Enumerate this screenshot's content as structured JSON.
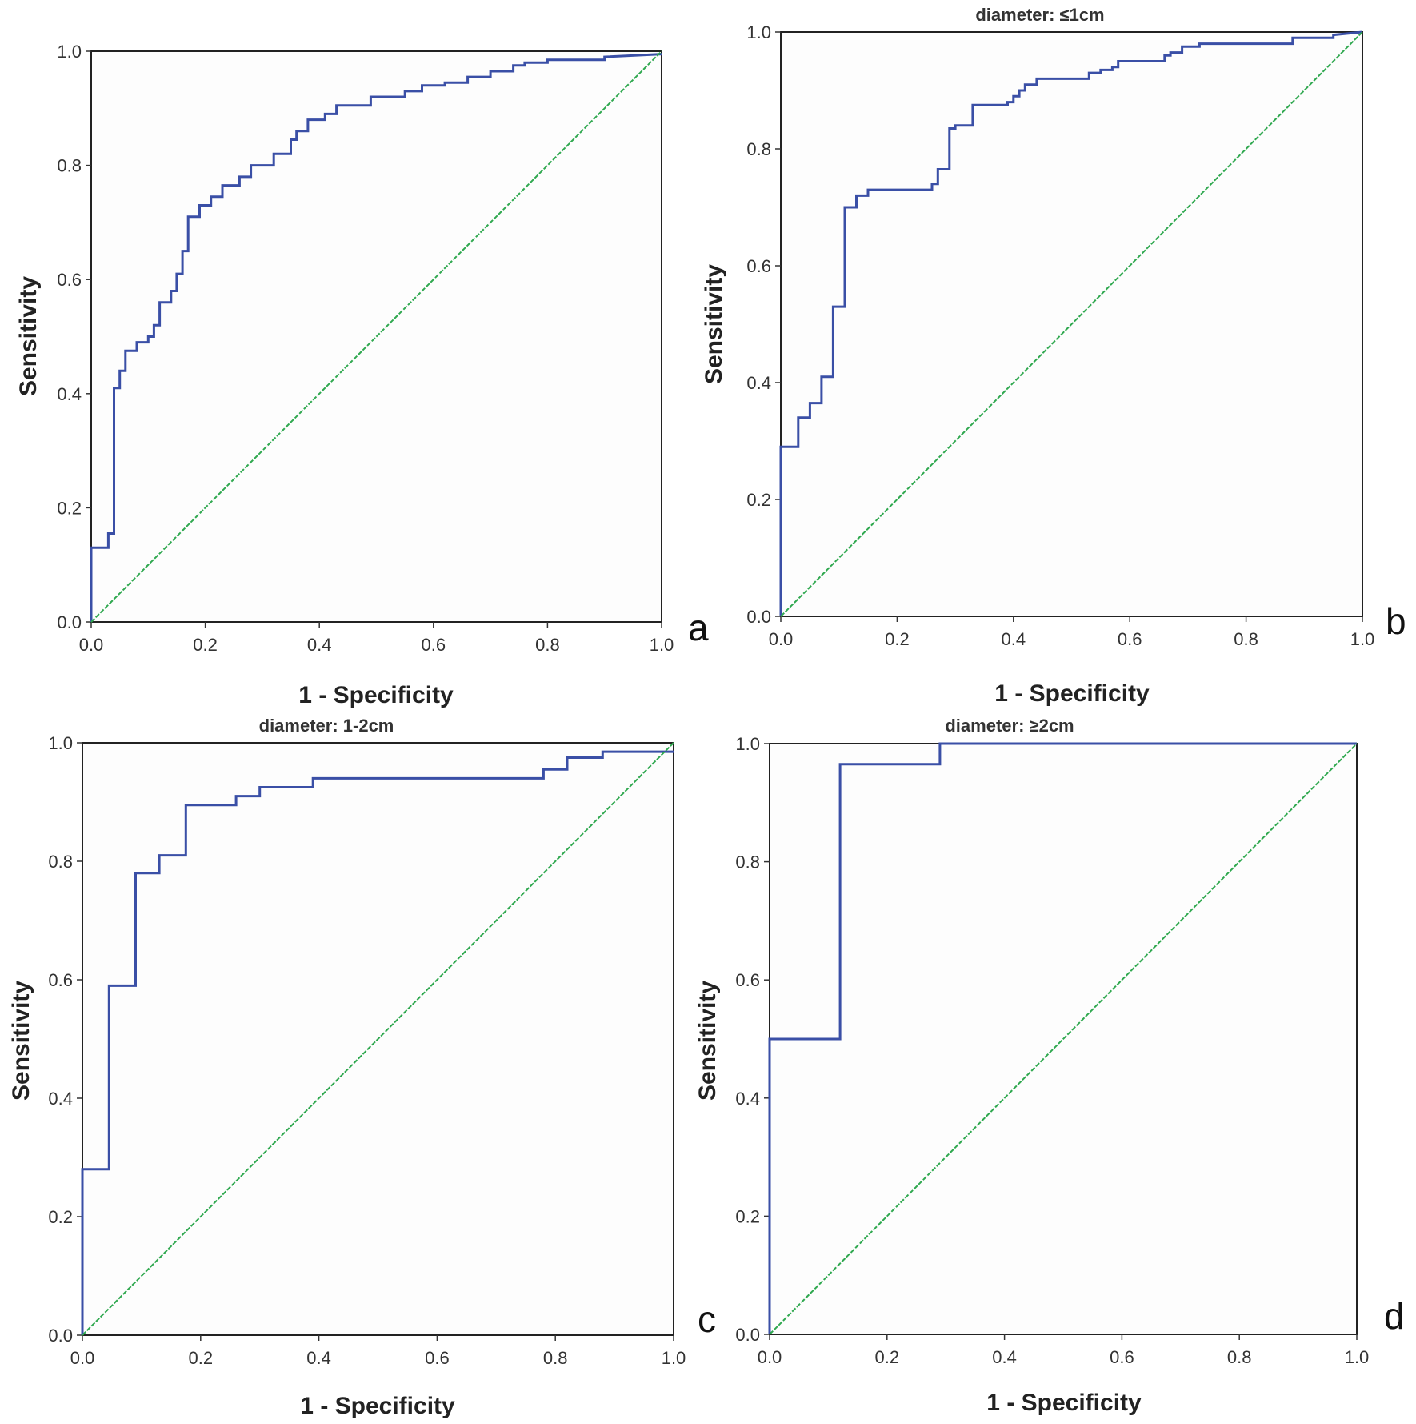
{
  "colors": {
    "roc": "#3a4fa6",
    "reference": "#2fa84f",
    "frame": "#222222"
  },
  "chart_data": [
    {
      "type": "line",
      "panel": "a",
      "title": "",
      "xlabel": "1 - Specificity",
      "ylabel": "Sensitivity",
      "xlim": [
        0,
        1
      ],
      "ylim": [
        0,
        1
      ],
      "xticks": [
        "0.0",
        "0.2",
        "0.4",
        "0.6",
        "0.8",
        "1.0"
      ],
      "yticks": [
        "0.0",
        "0.2",
        "0.4",
        "0.6",
        "0.8",
        "1.0"
      ],
      "series": [
        {
          "name": "ROC",
          "x": [
            0,
            0,
            0.03,
            0.03,
            0.04,
            0.04,
            0.05,
            0.05,
            0.06,
            0.06,
            0.08,
            0.08,
            0.1,
            0.1,
            0.11,
            0.11,
            0.12,
            0.12,
            0.14,
            0.14,
            0.15,
            0.15,
            0.16,
            0.16,
            0.17,
            0.17,
            0.19,
            0.19,
            0.21,
            0.21,
            0.23,
            0.23,
            0.26,
            0.26,
            0.28,
            0.28,
            0.32,
            0.32,
            0.35,
            0.35,
            0.36,
            0.36,
            0.38,
            0.38,
            0.41,
            0.41,
            0.43,
            0.43,
            0.49,
            0.49,
            0.55,
            0.55,
            0.58,
            0.58,
            0.62,
            0.62,
            0.66,
            0.66,
            0.7,
            0.7,
            0.74,
            0.74,
            0.76,
            0.76,
            0.8,
            0.8,
            0.9,
            0.9,
            1.0
          ],
          "y": [
            0,
            0.13,
            0.13,
            0.155,
            0.155,
            0.41,
            0.41,
            0.44,
            0.44,
            0.475,
            0.475,
            0.49,
            0.49,
            0.5,
            0.5,
            0.52,
            0.52,
            0.56,
            0.56,
            0.58,
            0.58,
            0.61,
            0.61,
            0.65,
            0.65,
            0.71,
            0.71,
            0.73,
            0.73,
            0.745,
            0.745,
            0.765,
            0.765,
            0.78,
            0.78,
            0.8,
            0.8,
            0.82,
            0.82,
            0.845,
            0.845,
            0.86,
            0.86,
            0.88,
            0.88,
            0.89,
            0.89,
            0.905,
            0.905,
            0.92,
            0.92,
            0.93,
            0.93,
            0.94,
            0.94,
            0.945,
            0.945,
            0.955,
            0.955,
            0.965,
            0.965,
            0.975,
            0.975,
            0.98,
            0.98,
            0.985,
            0.985,
            0.99,
            0.995
          ]
        },
        {
          "name": "Reference line",
          "x": [
            0,
            1
          ],
          "y": [
            0,
            1
          ]
        }
      ]
    },
    {
      "type": "line",
      "panel": "b",
      "title": "diameter: ≤1cm",
      "xlabel": "1 - Specificity",
      "ylabel": "Sensitivity",
      "xlim": [
        0,
        1
      ],
      "ylim": [
        0,
        1
      ],
      "xticks": [
        "0.0",
        "0.2",
        "0.4",
        "0.6",
        "0.8",
        "1.0"
      ],
      "yticks": [
        "0.0",
        "0.2",
        "0.4",
        "0.6",
        "0.8",
        "1.0"
      ],
      "series": [
        {
          "name": "ROC",
          "x": [
            0,
            0,
            0.03,
            0.03,
            0.05,
            0.05,
            0.07,
            0.07,
            0.09,
            0.09,
            0.11,
            0.11,
            0.13,
            0.13,
            0.15,
            0.15,
            0.26,
            0.26,
            0.27,
            0.27,
            0.29,
            0.29,
            0.3,
            0.3,
            0.33,
            0.33,
            0.39,
            0.39,
            0.4,
            0.4,
            0.41,
            0.41,
            0.42,
            0.42,
            0.44,
            0.44,
            0.53,
            0.53,
            0.55,
            0.55,
            0.57,
            0.57,
            0.58,
            0.58,
            0.66,
            0.66,
            0.67,
            0.67,
            0.69,
            0.69,
            0.72,
            0.72,
            0.88,
            0.88,
            0.95,
            0.95,
            1.0
          ],
          "y": [
            0,
            0.29,
            0.29,
            0.34,
            0.34,
            0.365,
            0.365,
            0.41,
            0.41,
            0.53,
            0.53,
            0.7,
            0.7,
            0.72,
            0.72,
            0.73,
            0.73,
            0.74,
            0.74,
            0.765,
            0.765,
            0.835,
            0.835,
            0.84,
            0.84,
            0.875,
            0.875,
            0.88,
            0.88,
            0.89,
            0.89,
            0.9,
            0.9,
            0.91,
            0.91,
            0.92,
            0.92,
            0.93,
            0.93,
            0.935,
            0.935,
            0.94,
            0.94,
            0.95,
            0.95,
            0.96,
            0.96,
            0.965,
            0.965,
            0.975,
            0.975,
            0.98,
            0.98,
            0.99,
            0.99,
            0.995,
            1.0
          ]
        },
        {
          "name": "Reference line",
          "x": [
            0,
            1
          ],
          "y": [
            0,
            1
          ]
        }
      ]
    },
    {
      "type": "line",
      "panel": "c",
      "title": "diameter: 1-2cm",
      "xlabel": "1 - Specificity",
      "ylabel": "Sensitivity",
      "xlim": [
        0,
        1
      ],
      "ylim": [
        0,
        1
      ],
      "xticks": [
        "0.0",
        "0.2",
        "0.4",
        "0.6",
        "0.8",
        "1.0"
      ],
      "yticks": [
        "0.0",
        "0.2",
        "0.4",
        "0.6",
        "0.8",
        "1.0"
      ],
      "series": [
        {
          "name": "ROC",
          "x": [
            0,
            0,
            0.045,
            0.045,
            0.09,
            0.09,
            0.13,
            0.13,
            0.175,
            0.175,
            0.26,
            0.26,
            0.3,
            0.3,
            0.39,
            0.39,
            0.78,
            0.78,
            0.82,
            0.82,
            0.88,
            0.88,
            1.0
          ],
          "y": [
            0,
            0.28,
            0.28,
            0.59,
            0.59,
            0.78,
            0.78,
            0.81,
            0.81,
            0.895,
            0.895,
            0.91,
            0.91,
            0.925,
            0.925,
            0.94,
            0.94,
            0.955,
            0.955,
            0.975,
            0.975,
            0.985,
            0.985
          ]
        },
        {
          "name": "Reference line",
          "x": [
            0,
            1
          ],
          "y": [
            0,
            1
          ]
        }
      ]
    },
    {
      "type": "line",
      "panel": "d",
      "title": "diameter: ≥2cm",
      "xlabel": "1 - Specificity",
      "ylabel": "Sensitivity",
      "xlim": [
        0,
        1
      ],
      "ylim": [
        0,
        1
      ],
      "xticks": [
        "0.0",
        "0.2",
        "0.4",
        "0.6",
        "0.8",
        "1.0"
      ],
      "yticks": [
        "0.0",
        "0.2",
        "0.4",
        "0.6",
        "0.8",
        "1.0"
      ],
      "series": [
        {
          "name": "ROC",
          "x": [
            0,
            0,
            0.12,
            0.12,
            0.29,
            0.29,
            1.0
          ],
          "y": [
            0,
            0.5,
            0.5,
            0.965,
            0.965,
            1.0,
            1.0
          ]
        },
        {
          "name": "Reference line",
          "x": [
            0,
            1
          ],
          "y": [
            0,
            1
          ]
        }
      ]
    }
  ]
}
